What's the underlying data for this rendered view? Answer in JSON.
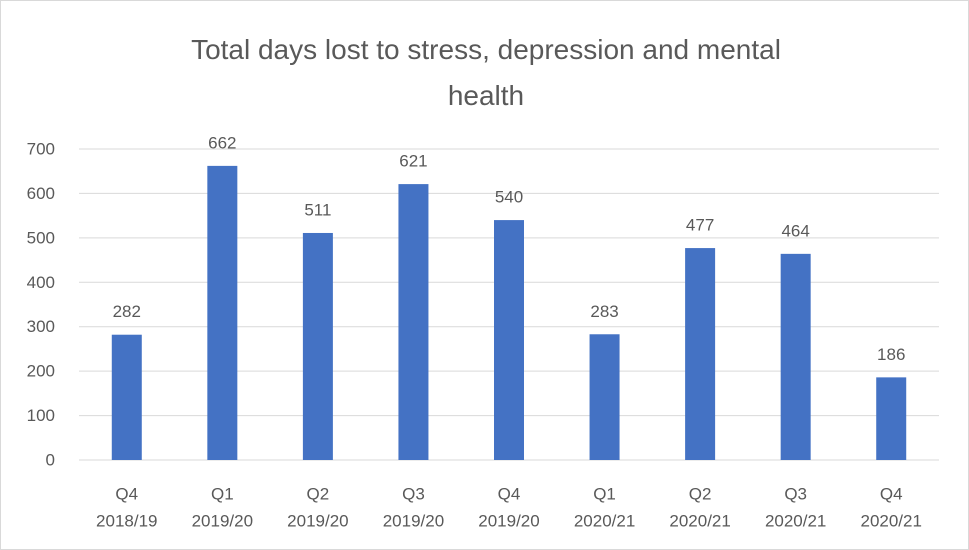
{
  "chart_data": {
    "type": "bar",
    "title": "Total days lost to stress, depression and mental health",
    "categories": [
      [
        "Q4",
        "2018/19"
      ],
      [
        "Q1",
        "2019/20"
      ],
      [
        "Q2",
        "2019/20"
      ],
      [
        "Q3",
        "2019/20"
      ],
      [
        "Q4",
        "2019/20"
      ],
      [
        "Q1",
        "2020/21"
      ],
      [
        "Q2",
        "2020/21"
      ],
      [
        "Q3",
        "2020/21"
      ],
      [
        "Q4",
        "2020/21"
      ]
    ],
    "values": [
      282,
      662,
      511,
      621,
      540,
      283,
      477,
      464,
      186
    ],
    "color": "#4472c4",
    "ylim": [
      0,
      700
    ],
    "yticks": [
      0,
      100,
      200,
      300,
      400,
      500,
      600,
      700
    ],
    "grid": true
  }
}
